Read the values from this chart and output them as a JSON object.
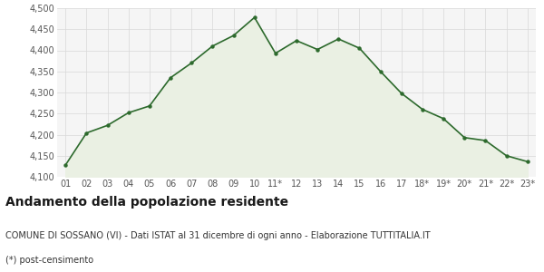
{
  "x_labels": [
    "01",
    "02",
    "03",
    "04",
    "05",
    "06",
    "07",
    "08",
    "09",
    "10",
    "11*",
    "12",
    "13",
    "14",
    "15",
    "16",
    "17",
    "18*",
    "19*",
    "20*",
    "21*",
    "22*",
    "23*"
  ],
  "values": [
    4128,
    4204,
    4222,
    4252,
    4268,
    4335,
    4370,
    4410,
    4435,
    4478,
    4393,
    4423,
    4402,
    4427,
    4405,
    4350,
    4298,
    4260,
    4238,
    4193,
    4186,
    4150,
    4136
  ],
  "ylim": [
    4100,
    4500
  ],
  "yticks": [
    4100,
    4150,
    4200,
    4250,
    4300,
    4350,
    4400,
    4450,
    4500
  ],
  "line_color": "#2d6a2d",
  "fill_color": "#eaf0e3",
  "marker_color": "#2d6a2d",
  "bg_color": "#f5f5f5",
  "grid_color": "#d8d8d8",
  "title": "Andamento della popolazione residente",
  "subtitle": "COMUNE DI SOSSANO (VI) - Dati ISTAT al 31 dicembre di ogni anno - Elaborazione TUTTITALIA.IT",
  "footnote": "(*) post-censimento",
  "title_fontsize": 10,
  "subtitle_fontsize": 7,
  "tick_fontsize": 7
}
